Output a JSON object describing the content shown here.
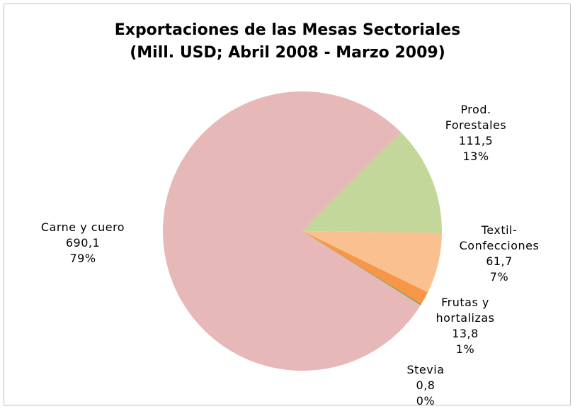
{
  "chart_data": {
    "type": "pie",
    "title": "Exportaciones de las Mesas Sectoriales",
    "subtitle": "(Mill. USD; Abril 2008 - Marzo 2009)",
    "categories": [
      "Carne y cuero",
      "Prod. Forestales",
      "Textil-Confecciones",
      "Frutas y hortalizas",
      "Stevia"
    ],
    "values": [
      690.1,
      111.5,
      61.7,
      13.8,
      0.8
    ],
    "value_labels": [
      "690,1",
      "111,5",
      "61,7",
      "13,8",
      "0,8"
    ],
    "percent_labels": [
      "79%",
      "13%",
      "7%",
      "1%",
      "0%"
    ],
    "colors": [
      "#e6b8b7",
      "#c4d79b",
      "#fac090",
      "#f79646",
      "#4f9a3c"
    ]
  }
}
